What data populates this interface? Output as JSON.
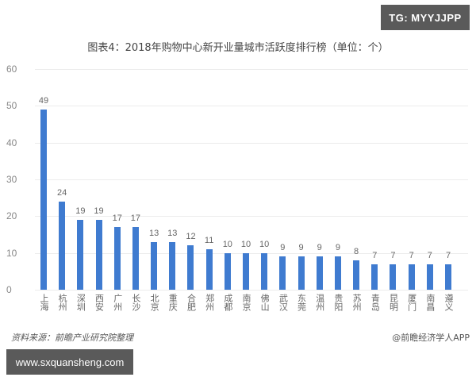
{
  "watermark_top": "TG: MYYJJPP",
  "watermark_bottom": "www.sxquansheng.com",
  "footer": {
    "source": "资料来源：前瞻产业研究院整理",
    "credit": "@前瞻经济学人APP"
  },
  "chart_data": {
    "type": "bar",
    "title": "图表4：2018年购物中心新开业量城市活跃度排行榜（单位：个）",
    "xlabel": "",
    "ylabel": "",
    "ylim": [
      0,
      60
    ],
    "yticks": [
      0,
      10,
      20,
      30,
      40,
      50,
      60
    ],
    "grid": true,
    "bar_color": "#3f7bd0",
    "categories": [
      "上海",
      "杭州",
      "深圳",
      "西安",
      "广州",
      "长沙",
      "北京",
      "重庆",
      "合肥",
      "郑州",
      "成都",
      "南京",
      "佛山",
      "武汉",
      "东莞",
      "温州",
      "贵阳",
      "苏州",
      "青岛",
      "昆明",
      "厦门",
      "南昌",
      "遵义"
    ],
    "values": [
      49,
      24,
      19,
      19,
      17,
      17,
      13,
      13,
      12,
      11,
      10,
      10,
      10,
      9,
      9,
      9,
      9,
      8,
      7,
      7,
      7,
      7,
      7
    ]
  }
}
